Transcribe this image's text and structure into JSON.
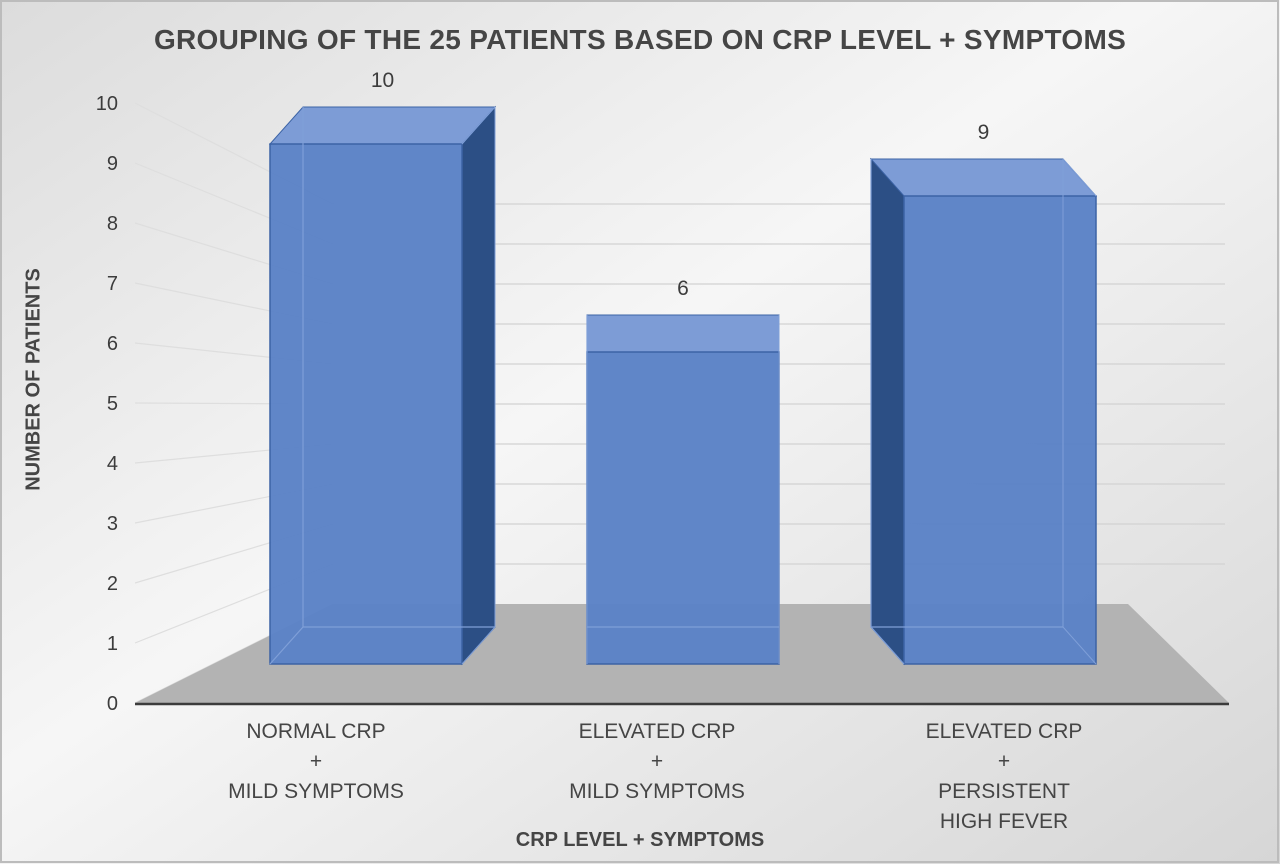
{
  "chart_data": {
    "type": "bar",
    "title": "GROUPING OF THE 25 PATIENTS BASED ON CRP LEVEL + SYMPTOMS",
    "xlabel": "CRP LEVEL + SYMPTOMS",
    "ylabel": "NUMBER OF PATIENTS",
    "ylim": [
      0,
      10
    ],
    "yticks": [
      0,
      1,
      2,
      3,
      4,
      5,
      6,
      7,
      8,
      9,
      10
    ],
    "grid": true,
    "style": "3d-column",
    "colors": {
      "bar": "#5b82c6",
      "bar_side": "#2c4f85",
      "floor": "#b3b3b3",
      "background": "#ececec"
    },
    "categories": [
      [
        "NORMAL CRP",
        "+",
        "MILD SYMPTOMS"
      ],
      [
        "ELEVATED CRP",
        "+",
        "MILD  SYMPTOMS"
      ],
      [
        "ELEVATED CRP",
        "+",
        "PERSISTENT",
        "HIGH FEVER"
      ]
    ],
    "values": [
      10,
      6,
      9
    ],
    "data_labels": [
      "10",
      "6",
      "9"
    ]
  }
}
